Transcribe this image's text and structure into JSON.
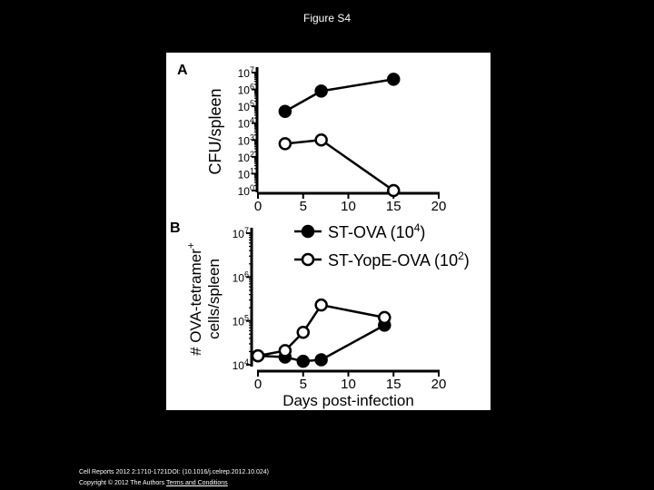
{
  "figure_title": "Figure S4",
  "footer": {
    "citation": "Cell Reports 2012 2:1710-1721DOI: (10.1016/j.celrep.2012.10.024)",
    "copyright": "Copyright © 2012 The Authors",
    "terms_link": "Terms and Conditions"
  },
  "chart_data": [
    {
      "panel_label": "A",
      "type": "line",
      "xlabel": "",
      "ylabel": "CFU/spleen",
      "yscale": "log",
      "xlim": [
        0,
        20
      ],
      "ylim_exponent": [
        0,
        7
      ],
      "x_ticks": [
        "0",
        "5",
        "10",
        "15",
        "20"
      ],
      "y_tick_exponents": [
        "0",
        "1",
        "2",
        "3",
        "4",
        "5",
        "6",
        "7"
      ],
      "grid": false,
      "series": [
        {
          "marker": "filled",
          "x": [
            3,
            7,
            15
          ],
          "y": [
            50000,
            800000,
            4000000
          ]
        },
        {
          "marker": "open",
          "x": [
            3,
            7,
            15
          ],
          "y": [
            600,
            1000,
            1
          ]
        }
      ]
    },
    {
      "panel_label": "B",
      "type": "line",
      "xlabel": "Days post-infection",
      "ylabel_line1": "# OVA-tetramer",
      "ylabel_sup": "+",
      "ylabel_line2": "cells/spleen",
      "yscale": "log",
      "xlim": [
        0,
        20
      ],
      "ylim_exponent": [
        4,
        7
      ],
      "x_ticks": [
        "0",
        "5",
        "10",
        "15",
        "20"
      ],
      "y_tick_exponents": [
        "4",
        "5",
        "6",
        "7"
      ],
      "grid": false,
      "legend_position": "top-right",
      "series": [
        {
          "name": "ST-OVA",
          "name_note_base": "10",
          "name_note_exp": "4",
          "marker": "filled",
          "x": [
            0,
            3,
            5,
            7,
            14
          ],
          "y": [
            16000,
            15000,
            12000,
            13000,
            80000
          ]
        },
        {
          "name": "ST-YopE-OVA",
          "name_note_base": "10",
          "name_note_exp": "2",
          "marker": "open",
          "x": [
            0,
            3,
            5,
            7,
            14
          ],
          "y": [
            16000,
            21000,
            55000,
            230000,
            120000
          ]
        }
      ]
    }
  ]
}
